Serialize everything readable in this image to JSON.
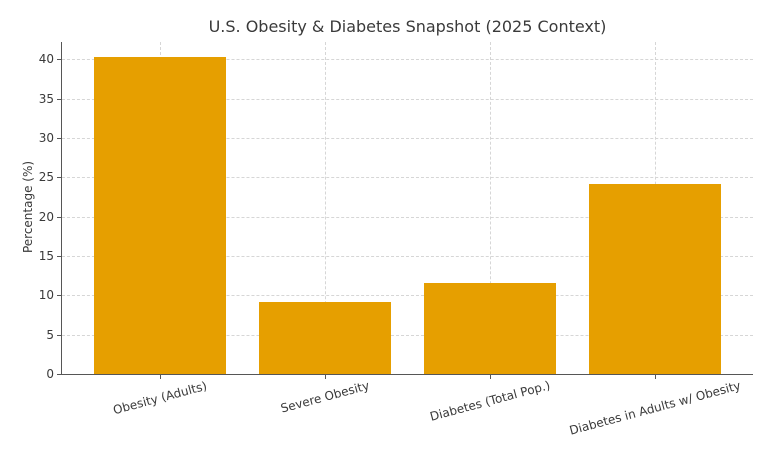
{
  "chart_data": {
    "type": "bar",
    "title": "U.S. Obesity & Diabetes Snapshot (2025 Context)",
    "categories": [
      "Obesity (Adults)",
      "Severe Obesity",
      "Diabetes (Total Pop.)",
      "Diabetes in Adults w/ Obesity"
    ],
    "values": [
      40.3,
      9.2,
      11.6,
      24.2
    ],
    "xlabel": "",
    "ylabel": "Percentage (%)",
    "ylim": [
      0,
      42.2
    ],
    "yticks": [
      0,
      5,
      10,
      15,
      20,
      25,
      30,
      35,
      40
    ],
    "xtick_rotation_deg": -15,
    "grid": true,
    "legend": false,
    "bar_color": "#E69F00",
    "spine_color": "#565656",
    "grid_color": "#d6d6d6",
    "text_color": "#3a3a3a",
    "background_color": "#ffffff"
  }
}
